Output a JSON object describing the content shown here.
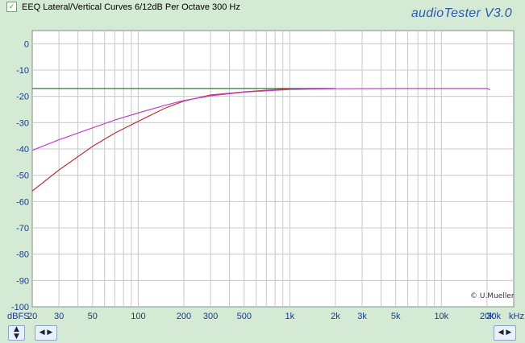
{
  "window": {
    "title": "EEQ Lateral/Vertical Curves 6/12dB Per Octave 300 Hz",
    "brand": "audioTester  V3.0",
    "copyright": "© U.Mueller"
  },
  "icons": {
    "title_check": "check-icon",
    "y_spinner": "up-down-arrows-icon",
    "x_spinner_left": "left-right-arrows-icon",
    "x_spinner_right": "left-right-arrows-icon"
  },
  "colors": {
    "plot_bg": "#ffffff",
    "grid": "#c8c8c8",
    "axis_text": "#1a3a8a",
    "series_green": "#2e7d32",
    "series_red": "#c0303a",
    "series_magenta": "#c040c8"
  },
  "chart_data": {
    "type": "line",
    "title": "EEQ Lateral/Vertical Curves 6/12dB Per Octave 300 Hz",
    "xscale": "log",
    "xlim": [
      20,
      30000
    ],
    "ylim": [
      -100,
      5
    ],
    "grid": true,
    "y_unit_label": "dBFS",
    "x_unit_label": "kHz",
    "yticks": [
      0,
      -10,
      -20,
      -30,
      -40,
      -50,
      -60,
      -70,
      -80,
      -90,
      -100
    ],
    "xticks": [
      {
        "value": 20,
        "label": "20"
      },
      {
        "value": 30,
        "label": "30"
      },
      {
        "value": 50,
        "label": "50"
      },
      {
        "value": 100,
        "label": "100"
      },
      {
        "value": 200,
        "label": "200"
      },
      {
        "value": 300,
        "label": "300"
      },
      {
        "value": 500,
        "label": "500"
      },
      {
        "value": 1000,
        "label": "1k"
      },
      {
        "value": 2000,
        "label": "2k"
      },
      {
        "value": 3000,
        "label": "3k"
      },
      {
        "value": 5000,
        "label": "5k"
      },
      {
        "value": 10000,
        "label": "10k"
      },
      {
        "value": 20000,
        "label": "20k"
      },
      {
        "value": 30000,
        "label": "30k"
      }
    ],
    "series": [
      {
        "color": "#2e7d32",
        "x": [
          20,
          30,
          50,
          100,
          200,
          300,
          500,
          1000,
          2000
        ],
        "y": [
          -17,
          -17,
          -17,
          -17,
          -17,
          -17,
          -17,
          -17,
          -17
        ]
      },
      {
        "color": "#c0303a",
        "x": [
          20,
          30,
          50,
          70,
          100,
          150,
          200,
          300,
          500,
          700,
          1000
        ],
        "y": [
          -56,
          -48,
          -39,
          -34,
          -29.5,
          -24.5,
          -21.8,
          -19.5,
          -18.3,
          -17.7,
          -17.2
        ]
      },
      {
        "color": "#c040c8",
        "x": [
          20,
          30,
          50,
          70,
          100,
          150,
          200,
          300,
          500,
          1000,
          2000,
          5000,
          10000,
          20000,
          21000
        ],
        "y": [
          -40.5,
          -36.5,
          -32,
          -29,
          -26.3,
          -23.4,
          -21.6,
          -19.8,
          -18.4,
          -17.4,
          -17.1,
          -17,
          -17,
          -17,
          -17.5
        ]
      }
    ]
  }
}
